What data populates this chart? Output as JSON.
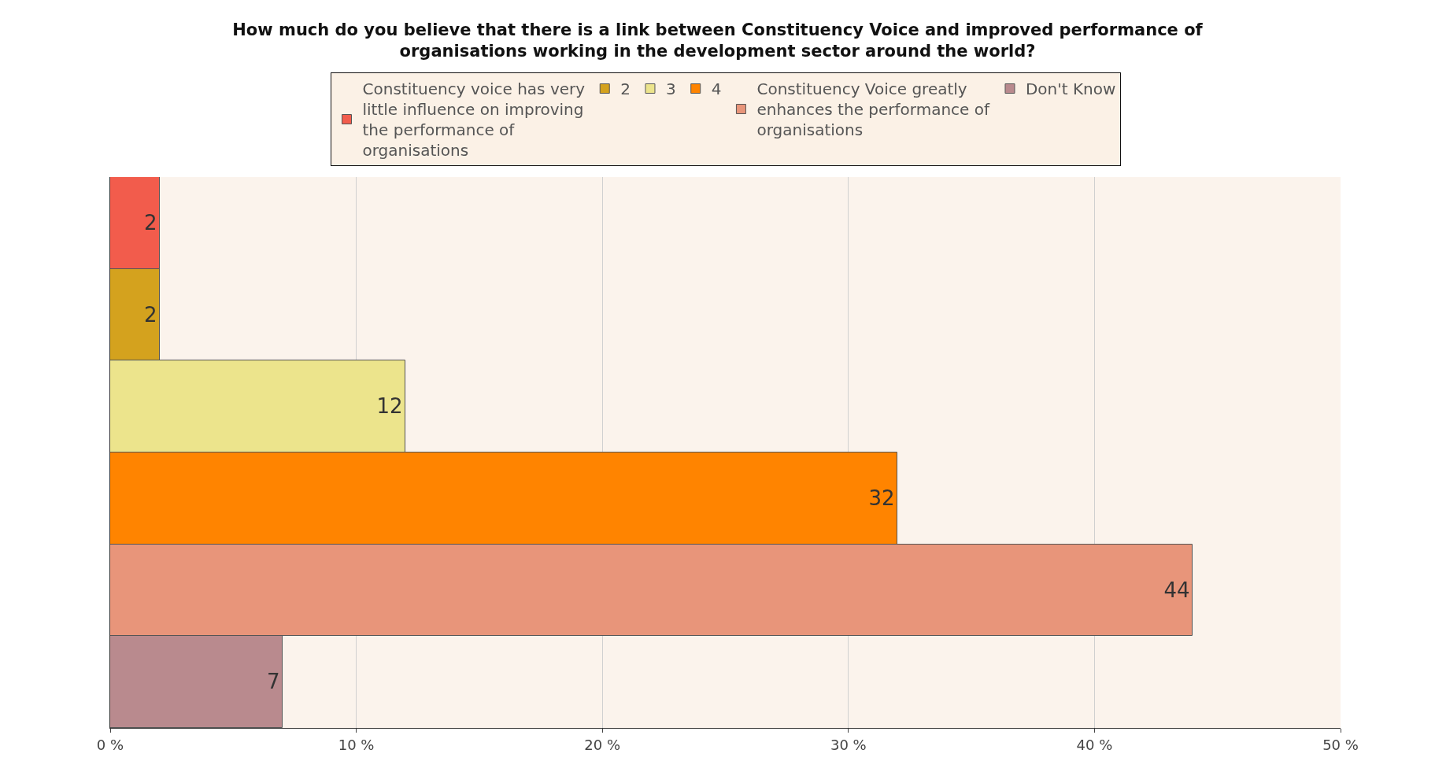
{
  "chart_data": {
    "type": "bar",
    "orientation": "horizontal",
    "title": "How much do you believe that there is a link between Constituency Voice and improved performance of organisations working in the development sector around the world?",
    "categories": [
      null
    ],
    "series": [
      {
        "name": "Constituency voice has very little influence on improving the performance of organisations",
        "color": "#f25c4c",
        "values": [
          2
        ]
      },
      {
        "name": "2",
        "color": "#d4a21e",
        "values": [
          2
        ]
      },
      {
        "name": "3",
        "color": "#ece48c",
        "values": [
          12
        ]
      },
      {
        "name": "4",
        "color": "#ff8400",
        "values": [
          32
        ]
      },
      {
        "name": "Constituency Voice greatly enhances the performance of organisations",
        "color": "#e8957a",
        "values": [
          44
        ]
      },
      {
        "name": "Don't Know",
        "color": "#b98a8e",
        "values": [
          7
        ]
      }
    ],
    "xlim": [
      0,
      50
    ],
    "xticks": [
      {
        "value": 0,
        "label": "0 %"
      },
      {
        "value": 10,
        "label": "10 %"
      },
      {
        "value": 20,
        "label": "20 %"
      },
      {
        "value": 30,
        "label": "30 %"
      },
      {
        "value": 40,
        "label": "40 %"
      },
      {
        "value": 50,
        "label": "50 %"
      }
    ],
    "grid": "x",
    "legend": "top",
    "data_labels": true
  }
}
